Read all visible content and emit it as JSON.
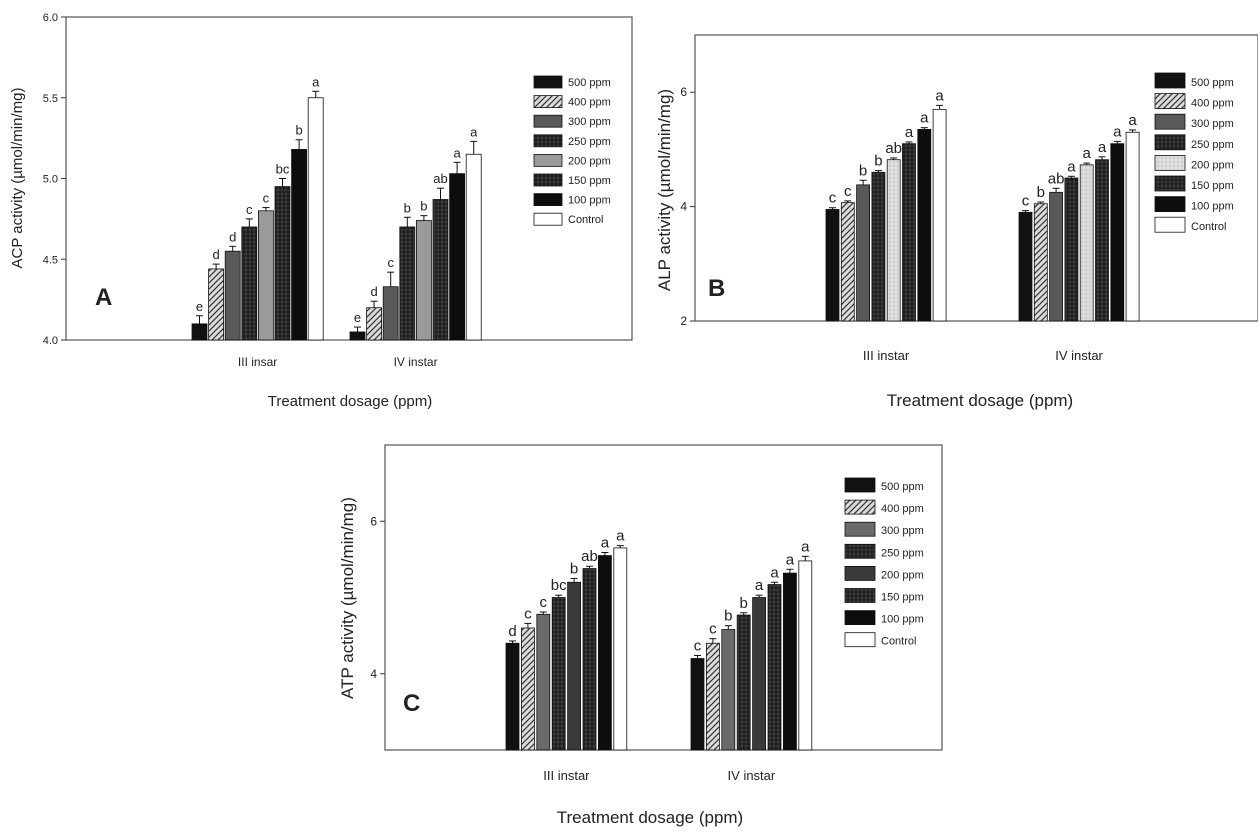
{
  "chart_data": [
    {
      "type": "bar",
      "panel_label": "A",
      "categories": [
        "III insar",
        "IV instar"
      ],
      "xlabel": "Treatment dosage (ppm)",
      "ylabel": "ACP activity (µmol/min/mg)",
      "ylim": [
        4.0,
        6.0
      ],
      "yticks": [
        "4.0",
        "4.5",
        "5.0",
        "5.5",
        "6.0"
      ],
      "grid": false,
      "legend_position": "right",
      "series": [
        {
          "name": "500 ppm",
          "values": [
            4.1,
            4.05
          ],
          "errors": [
            0.05,
            0.03
          ],
          "letters": [
            "e",
            "e"
          ]
        },
        {
          "name": "400 ppm",
          "values": [
            4.44,
            4.2
          ],
          "errors": [
            0.03,
            0.04
          ],
          "letters": [
            "d",
            "d"
          ]
        },
        {
          "name": "300 ppm",
          "values": [
            4.55,
            4.33
          ],
          "errors": [
            0.03,
            0.09
          ],
          "letters": [
            "d",
            "c"
          ]
        },
        {
          "name": "250 ppm",
          "values": [
            4.7,
            4.7
          ],
          "errors": [
            0.05,
            0.06
          ],
          "letters": [
            "c",
            "b"
          ]
        },
        {
          "name": "200 ppm",
          "values": [
            4.8,
            4.74
          ],
          "errors": [
            0.02,
            0.03
          ],
          "letters": [
            "c",
            "b"
          ]
        },
        {
          "name": "150 ppm",
          "values": [
            4.95,
            4.87
          ],
          "errors": [
            0.05,
            0.07
          ],
          "letters": [
            "bc",
            "ab"
          ]
        },
        {
          "name": "100 ppm",
          "values": [
            5.18,
            5.03
          ],
          "errors": [
            0.06,
            0.07
          ],
          "letters": [
            "b",
            "a"
          ]
        },
        {
          "name": "Control",
          "values": [
            5.5,
            5.15
          ],
          "errors": [
            0.04,
            0.08
          ],
          "letters": [
            "a",
            "a"
          ]
        }
      ]
    },
    {
      "type": "bar",
      "panel_label": "B",
      "categories": [
        "III instar",
        "IV instar"
      ],
      "xlabel": "Treatment dosage (ppm)",
      "ylabel": "ALP activity (µmol/min/mg)",
      "ylim": [
        2,
        7
      ],
      "yticks": [
        "2",
        "4",
        "6"
      ],
      "grid": false,
      "legend_position": "right",
      "series": [
        {
          "name": "500 ppm",
          "values": [
            3.95,
            3.9
          ],
          "errors": [
            0.03,
            0.03
          ],
          "letters": [
            "c",
            "c"
          ]
        },
        {
          "name": "400 ppm",
          "values": [
            4.07,
            4.05
          ],
          "errors": [
            0.03,
            0.03
          ],
          "letters": [
            "c",
            "b"
          ]
        },
        {
          "name": "300 ppm",
          "values": [
            4.38,
            4.25
          ],
          "errors": [
            0.08,
            0.07
          ],
          "letters": [
            "b",
            "ab"
          ]
        },
        {
          "name": "250 ppm",
          "values": [
            4.6,
            4.5
          ],
          "errors": [
            0.03,
            0.03
          ],
          "letters": [
            "b",
            "a"
          ]
        },
        {
          "name": "200 ppm",
          "values": [
            4.82,
            4.73
          ],
          "errors": [
            0.03,
            0.03
          ],
          "letters": [
            "ab",
            "a"
          ]
        },
        {
          "name": "150 ppm",
          "values": [
            5.1,
            4.82
          ],
          "errors": [
            0.03,
            0.05
          ],
          "letters": [
            "a",
            "a"
          ]
        },
        {
          "name": "100 ppm",
          "values": [
            5.35,
            5.1
          ],
          "errors": [
            0.03,
            0.04
          ],
          "letters": [
            "a",
            "a"
          ]
        },
        {
          "name": "Control",
          "values": [
            5.7,
            5.3
          ],
          "errors": [
            0.07,
            0.04
          ],
          "letters": [
            "a",
            "a"
          ]
        }
      ]
    },
    {
      "type": "bar",
      "panel_label": "C",
      "categories": [
        "III instar",
        "IV instar"
      ],
      "xlabel": "Treatment dosage (ppm)",
      "ylabel": "ATP activity (µmol/min/mg)",
      "ylim": [
        3,
        7
      ],
      "yticks": [
        "4",
        "6"
      ],
      "grid": false,
      "legend_position": "right",
      "series": [
        {
          "name": "500 ppm",
          "values": [
            4.4,
            4.2
          ],
          "errors": [
            0.03,
            0.04
          ],
          "letters": [
            "d",
            "c"
          ]
        },
        {
          "name": "400 ppm",
          "values": [
            4.6,
            4.4
          ],
          "errors": [
            0.06,
            0.06
          ],
          "letters": [
            "c",
            "c"
          ]
        },
        {
          "name": "300 ppm",
          "values": [
            4.78,
            4.58
          ],
          "errors": [
            0.03,
            0.05
          ],
          "letters": [
            "c",
            "b"
          ]
        },
        {
          "name": "250 ppm",
          "values": [
            5.0,
            4.77
          ],
          "errors": [
            0.03,
            0.03
          ],
          "letters": [
            "bc",
            "b"
          ]
        },
        {
          "name": "200 ppm",
          "values": [
            5.2,
            5.0
          ],
          "errors": [
            0.05,
            0.03
          ],
          "letters": [
            "b",
            "a"
          ]
        },
        {
          "name": "150 ppm",
          "values": [
            5.38,
            5.17
          ],
          "errors": [
            0.03,
            0.03
          ],
          "letters": [
            "ab",
            "a"
          ]
        },
        {
          "name": "100 ppm",
          "values": [
            5.55,
            5.32
          ],
          "errors": [
            0.04,
            0.05
          ],
          "letters": [
            "a",
            "a"
          ]
        },
        {
          "name": "Control",
          "values": [
            5.65,
            5.48
          ],
          "errors": [
            0.03,
            0.06
          ],
          "letters": [
            "a",
            "a"
          ]
        }
      ]
    }
  ],
  "style": {
    "series_fills": [
      "#111111",
      "hatch",
      "#595959",
      "grid",
      "#9a9a9a",
      "grid",
      "#0d0d0d",
      "#ffffff"
    ],
    "panel_c_series_fills": [
      "#111111",
      "hatch",
      "#6a6a6a",
      "grid",
      "#3a3a3a",
      "grid",
      "#0d0d0d",
      "#ffffff"
    ]
  }
}
